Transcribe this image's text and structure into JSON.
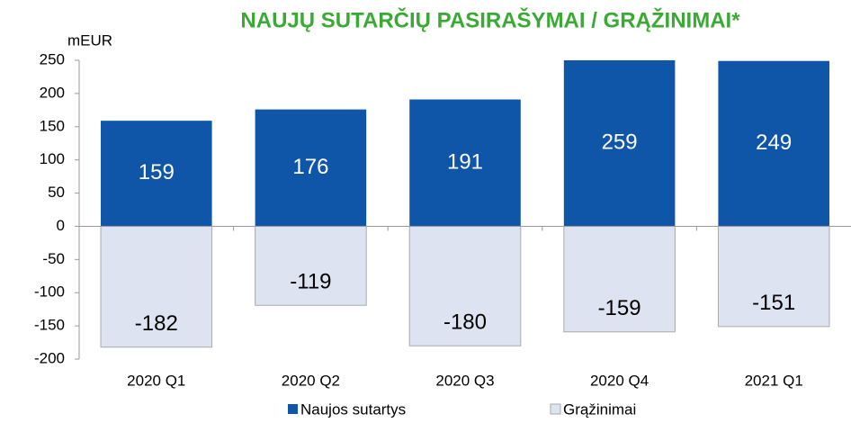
{
  "chart_data": {
    "type": "bar",
    "title": "NAUJŲ SUTARČIŲ PASIRAŠYMAI / GRĄŽINIMAI*",
    "y_label": "mEUR",
    "categories": [
      "2020 Q1",
      "2020 Q2",
      "2020 Q3",
      "2020 Q4",
      "2021 Q1"
    ],
    "series": [
      {
        "name": "Naujos sutartys",
        "color": "#0f56a8",
        "values": [
          159,
          176,
          191,
          259,
          249
        ]
      },
      {
        "name": "Grąžinimai",
        "color": "#dde3f0",
        "values": [
          -182,
          -119,
          -180,
          -159,
          -151
        ]
      }
    ],
    "ylim": [
      -200,
      250
    ],
    "yticks": [
      -200,
      -150,
      -100,
      -50,
      0,
      50,
      100,
      150,
      200,
      250
    ],
    "grid": false,
    "legend": "bottom"
  }
}
